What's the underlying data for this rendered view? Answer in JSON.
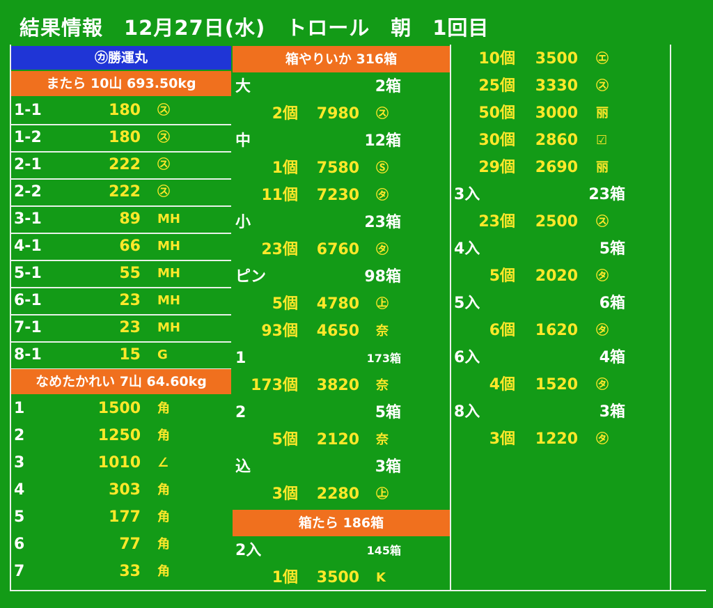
{
  "title": "結果情報　12月27日(水)　トロール　朝　1回目",
  "left": {
    "vessel": "㋕勝運丸",
    "sections": [
      {
        "header": "またら 10山 693.50kg",
        "rows": [
          {
            "label": "1-1",
            "value": "180",
            "mark": "㋜"
          },
          {
            "label": "1-2",
            "value": "180",
            "mark": "㋜"
          },
          {
            "label": "2-1",
            "value": "222",
            "mark": "㋜"
          },
          {
            "label": "2-2",
            "value": "222",
            "mark": "㋜"
          },
          {
            "label": "3-1",
            "value": "89",
            "mark": "MH"
          },
          {
            "label": "4-1",
            "value": "66",
            "mark": "MH"
          },
          {
            "label": "5-1",
            "value": "55",
            "mark": "MH"
          },
          {
            "label": "6-1",
            "value": "23",
            "mark": "MH"
          },
          {
            "label": "7-1",
            "value": "23",
            "mark": "MH"
          },
          {
            "label": "8-1",
            "value": "15",
            "mark": "G"
          }
        ]
      },
      {
        "header": "なめたかれい 7山 64.60kg",
        "rows": [
          {
            "label": "1",
            "value": "1500",
            "mark": "角"
          },
          {
            "label": "2",
            "value": "1250",
            "mark": "角"
          },
          {
            "label": "3",
            "value": "1010",
            "mark": "∠"
          },
          {
            "label": "4",
            "value": "303",
            "mark": "角"
          },
          {
            "label": "5",
            "value": "177",
            "mark": "角"
          },
          {
            "label": "6",
            "value": "77",
            "mark": "角"
          },
          {
            "label": "7",
            "value": "33",
            "mark": "角"
          }
        ]
      }
    ]
  },
  "middle": {
    "header": "箱やりいか 316箱",
    "groups": [
      {
        "label": "大",
        "boxes": "2箱",
        "items": [
          {
            "count": "2個",
            "price": "7980",
            "mark": "㋜"
          }
        ]
      },
      {
        "label": "中",
        "boxes": "12箱",
        "items": [
          {
            "count": "1個",
            "price": "7580",
            "mark": "Ⓢ"
          },
          {
            "count": "11個",
            "price": "7230",
            "mark": "㋟"
          }
        ]
      },
      {
        "label": "小",
        "boxes": "23箱",
        "items": [
          {
            "count": "23個",
            "price": "6760",
            "mark": "㋟"
          }
        ]
      },
      {
        "label": "ピン",
        "boxes": "98箱",
        "items": [
          {
            "count": "5個",
            "price": "4780",
            "mark": "㊤"
          },
          {
            "count": "93個",
            "price": "4650",
            "mark": "奈"
          }
        ]
      },
      {
        "label": "1",
        "boxes": "173箱",
        "items": [
          {
            "count": "173個",
            "price": "3820",
            "mark": "奈"
          }
        ]
      },
      {
        "label": "2",
        "boxes": "5箱",
        "items": [
          {
            "count": "5個",
            "price": "2120",
            "mark": "奈"
          }
        ]
      },
      {
        "label": "込",
        "boxes": "3箱",
        "items": [
          {
            "count": "3個",
            "price": "2280",
            "mark": "㊤"
          }
        ]
      }
    ],
    "header2": "箱たら 186箱",
    "groups2": [
      {
        "label": "2入",
        "boxes": "145箱",
        "items": [
          {
            "count": "1個",
            "price": "3500",
            "mark": "K"
          }
        ]
      }
    ]
  },
  "right": {
    "rows": [
      {
        "type": "item",
        "count": "10個",
        "price": "3500",
        "mark": "㋓"
      },
      {
        "type": "item",
        "count": "25個",
        "price": "3330",
        "mark": "㋜"
      },
      {
        "type": "item",
        "count": "50個",
        "price": "3000",
        "mark": "丽"
      },
      {
        "type": "item",
        "count": "30個",
        "price": "2860",
        "mark": "☑"
      },
      {
        "type": "item",
        "count": "29個",
        "price": "2690",
        "mark": "丽"
      },
      {
        "type": "group",
        "label": "3入",
        "boxes": "23箱"
      },
      {
        "type": "item",
        "count": "23個",
        "price": "2500",
        "mark": "㋜"
      },
      {
        "type": "group",
        "label": "4入",
        "boxes": "5箱"
      },
      {
        "type": "item",
        "count": "5個",
        "price": "2020",
        "mark": "㋟"
      },
      {
        "type": "group",
        "label": "5入",
        "boxes": "6箱"
      },
      {
        "type": "item",
        "count": "6個",
        "price": "1620",
        "mark": "㋟"
      },
      {
        "type": "group",
        "label": "6入",
        "boxes": "4箱"
      },
      {
        "type": "item",
        "count": "4個",
        "price": "1520",
        "mark": "㋟"
      },
      {
        "type": "group",
        "label": "8入",
        "boxes": "3箱"
      },
      {
        "type": "item",
        "count": "3個",
        "price": "1220",
        "mark": "㋟"
      }
    ]
  }
}
